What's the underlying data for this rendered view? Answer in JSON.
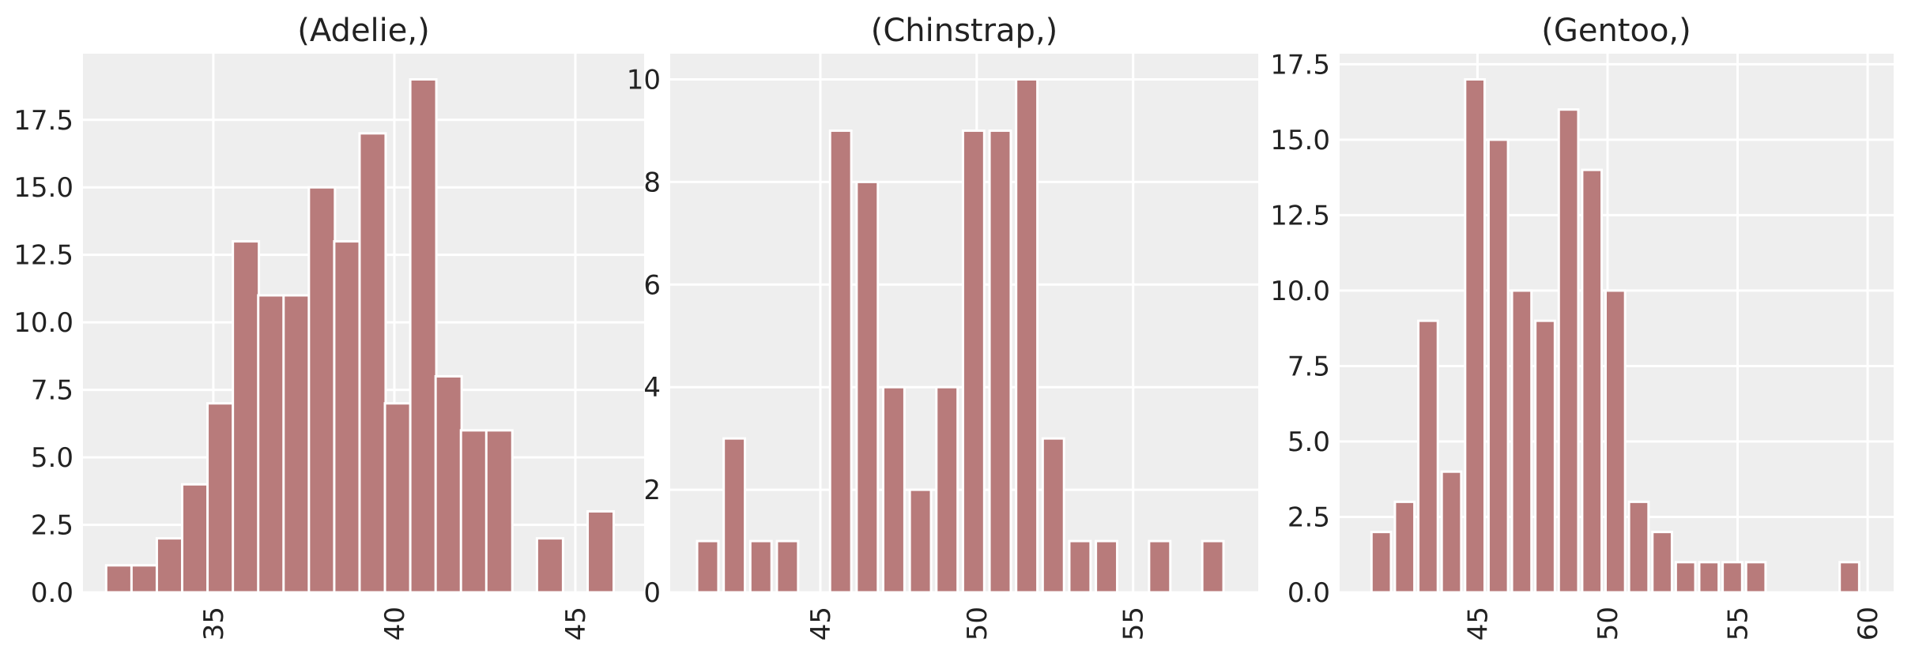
{
  "colors": {
    "bar": "#b87b7b",
    "axes_background": "#eeeeee",
    "grid": "#ffffff",
    "text": "#222222"
  },
  "chart_data": [
    {
      "type": "bar",
      "title": "(Adelie,)",
      "xlabel": "",
      "ylabel": "",
      "grid": true,
      "xlim": [
        31.4,
        46.9
      ],
      "ylim": [
        0,
        19.95
      ],
      "bar_width": 0.72,
      "xticks": [
        35,
        40,
        45
      ],
      "yticks": [
        0.0,
        2.5,
        5.0,
        7.5,
        10.0,
        12.5,
        15.0,
        17.5
      ],
      "ytick_labels": [
        "0.0",
        "2.5",
        "5.0",
        "7.5",
        "10.0",
        "12.5",
        "15.0",
        "17.5"
      ],
      "x": [
        32.4,
        33.1,
        33.8,
        34.5,
        35.2,
        35.9,
        36.6,
        37.3,
        38.0,
        38.7,
        39.4,
        40.1,
        40.8,
        41.5,
        42.2,
        42.9,
        44.3,
        45.7
      ],
      "values": [
        1,
        1,
        2,
        4,
        7,
        13,
        11,
        11,
        15,
        13,
        17,
        7,
        19,
        8,
        6,
        6,
        2,
        3
      ]
    },
    {
      "type": "bar",
      "title": "(Chinstrap,)",
      "xlabel": "",
      "ylabel": "",
      "grid": true,
      "xlim": [
        40.2,
        59.0
      ],
      "ylim": [
        0,
        10.5
      ],
      "bar_width": 0.68,
      "xticks": [
        45,
        50,
        55
      ],
      "yticks": [
        0,
        2,
        4,
        6,
        8,
        10
      ],
      "ytick_labels": [
        "0",
        "2",
        "4",
        "6",
        "8",
        "10"
      ],
      "x": [
        41.4,
        42.25,
        43.1,
        43.95,
        45.65,
        46.5,
        47.35,
        48.2,
        49.05,
        49.9,
        50.75,
        51.6,
        52.45,
        53.3,
        54.15,
        55.85,
        57.55
      ],
      "values": [
        1,
        3,
        1,
        1,
        9,
        8,
        4,
        2,
        4,
        9,
        9,
        10,
        3,
        1,
        1,
        1,
        1
      ]
    },
    {
      "type": "bar",
      "title": "(Gentoo,)",
      "xlabel": "",
      "ylabel": "",
      "grid": true,
      "xlim": [
        39.7,
        61.0
      ],
      "ylim": [
        0,
        17.85
      ],
      "bar_width": 0.75,
      "xticks": [
        45,
        50,
        55,
        60
      ],
      "yticks": [
        0.0,
        2.5,
        5.0,
        7.5,
        10.0,
        12.5,
        15.0,
        17.5
      ],
      "ytick_labels": [
        "0.0",
        "2.5",
        "5.0",
        "7.5",
        "10.0",
        "12.5",
        "15.0",
        "17.5"
      ],
      "x": [
        41.3,
        42.2,
        43.1,
        44.0,
        44.9,
        45.8,
        46.7,
        47.6,
        48.5,
        49.4,
        50.3,
        51.2,
        52.1,
        53.0,
        53.9,
        54.8,
        55.7,
        59.3
      ],
      "values": [
        2,
        3,
        9,
        4,
        17,
        15,
        10,
        9,
        16,
        14,
        10,
        3,
        2,
        1,
        1,
        1,
        1,
        1
      ]
    }
  ]
}
